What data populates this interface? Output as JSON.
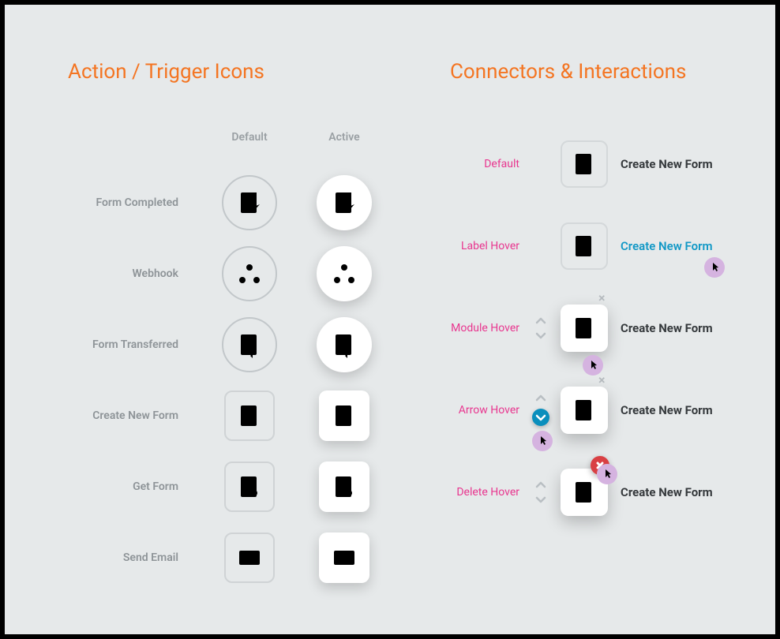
{
  "colors": {
    "page_bg": "#e6e9ea",
    "title_orange": "#f47522",
    "grey_text": "#8e9498",
    "grey_icon": "#b7bcc0",
    "blue_icon": "#1198c6",
    "pink_label": "#e8368f",
    "delete_red": "#d94044",
    "cursor_purple": "#d5b3e0",
    "card_border": "#cfd3d5",
    "black_label": "#35393c"
  },
  "layout": {
    "board_width": 976,
    "board_height": 798
  },
  "left": {
    "title": "Action / Trigger Icons",
    "columns": {
      "default": "Default",
      "active": "Active"
    },
    "rows": [
      {
        "label": "Form Completed",
        "icon": "form-check",
        "shape": "circle"
      },
      {
        "label": "Webhook",
        "icon": "webhook",
        "shape": "circle"
      },
      {
        "label": "Form Transferred",
        "icon": "form-arrows",
        "shape": "circle"
      },
      {
        "label": "Create New Form",
        "icon": "form-plus",
        "shape": "card"
      },
      {
        "label": "Get Form",
        "icon": "form-search",
        "shape": "card"
      },
      {
        "label": "Send Email",
        "icon": "mail",
        "shape": "card"
      }
    ]
  },
  "right": {
    "title": "Connectors & Interactions",
    "module_label": "Create New Form",
    "module_icon": "form-plus",
    "states": [
      {
        "key": "default",
        "label": "Default",
        "raised": false,
        "arrows": false,
        "closeX": false,
        "labelHover": false,
        "cursor": null,
        "arrowActive": false,
        "closeBtn": false
      },
      {
        "key": "label-hover",
        "label": "Label Hover",
        "raised": false,
        "arrows": false,
        "closeX": false,
        "labelHover": true,
        "cursor": "on-label",
        "arrowActive": false,
        "closeBtn": false
      },
      {
        "key": "module-hover",
        "label": "Module Hover",
        "raised": true,
        "arrows": true,
        "closeX": true,
        "labelHover": false,
        "cursor": "on-module",
        "arrowActive": false,
        "closeBtn": false
      },
      {
        "key": "arrow-hover",
        "label": "Arrow Hover",
        "raised": true,
        "arrows": true,
        "closeX": true,
        "labelHover": false,
        "cursor": "on-arrow",
        "arrowActive": true,
        "closeBtn": false
      },
      {
        "key": "delete-hover",
        "label": "Delete Hover",
        "raised": true,
        "arrows": true,
        "closeX": false,
        "labelHover": false,
        "cursor": "on-close",
        "arrowActive": false,
        "closeBtn": true
      }
    ]
  }
}
